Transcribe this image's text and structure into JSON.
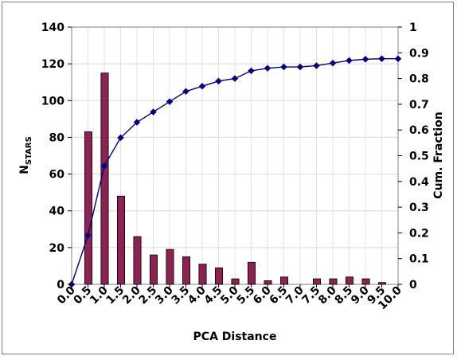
{
  "chart_data": {
    "type": "bar",
    "title": "",
    "xlabel": "PCA Distance",
    "ylabel_main": "N",
    "ylabel_sub": "STARS",
    "y2label": "Cum. Fraction",
    "x_ticks": [
      "0.0",
      "0.5",
      "1.0",
      "1.5",
      "2.0",
      "2.5",
      "3.0",
      "3.5",
      "4.0",
      "4.5",
      "5.0",
      "5.5",
      "6.0",
      "6.5",
      "7.0",
      "7.5",
      "8.0",
      "8.5",
      "9.0",
      "9.5",
      "10.0"
    ],
    "ylim": [
      0,
      140
    ],
    "y_ticks": [
      0,
      20,
      40,
      60,
      80,
      100,
      120,
      140
    ],
    "y2lim": [
      0,
      1
    ],
    "y2_ticks": [
      "0",
      "0.1",
      "0.2",
      "0.3",
      "0.4",
      "0.5",
      "0.6",
      "0.7",
      "0.8",
      "0.9",
      "1"
    ],
    "grid": true,
    "series": [
      {
        "chart": "bar",
        "axis": "left",
        "color": "#8B2252",
        "values": [
          83,
          115,
          48,
          26,
          16,
          19,
          15,
          11,
          9,
          3,
          12,
          2,
          4,
          0,
          3,
          3,
          4,
          3,
          1
        ]
      },
      {
        "chart": "line",
        "axis": "right",
        "color": "#000080",
        "marker": "diamond",
        "x": [
          0.0,
          0.5,
          1.0,
          1.5,
          2.0,
          2.5,
          3.0,
          3.5,
          4.0,
          4.5,
          5.0,
          5.5,
          6.0,
          6.5,
          7.0,
          7.5,
          8.0,
          8.5,
          9.0,
          9.5,
          10.0
        ],
        "values": [
          0.0,
          0.19,
          0.46,
          0.57,
          0.63,
          0.67,
          0.71,
          0.75,
          0.77,
          0.79,
          0.8,
          0.83,
          0.84,
          0.845,
          0.845,
          0.85,
          0.86,
          0.87,
          0.875,
          0.877,
          0.877
        ]
      }
    ]
  }
}
